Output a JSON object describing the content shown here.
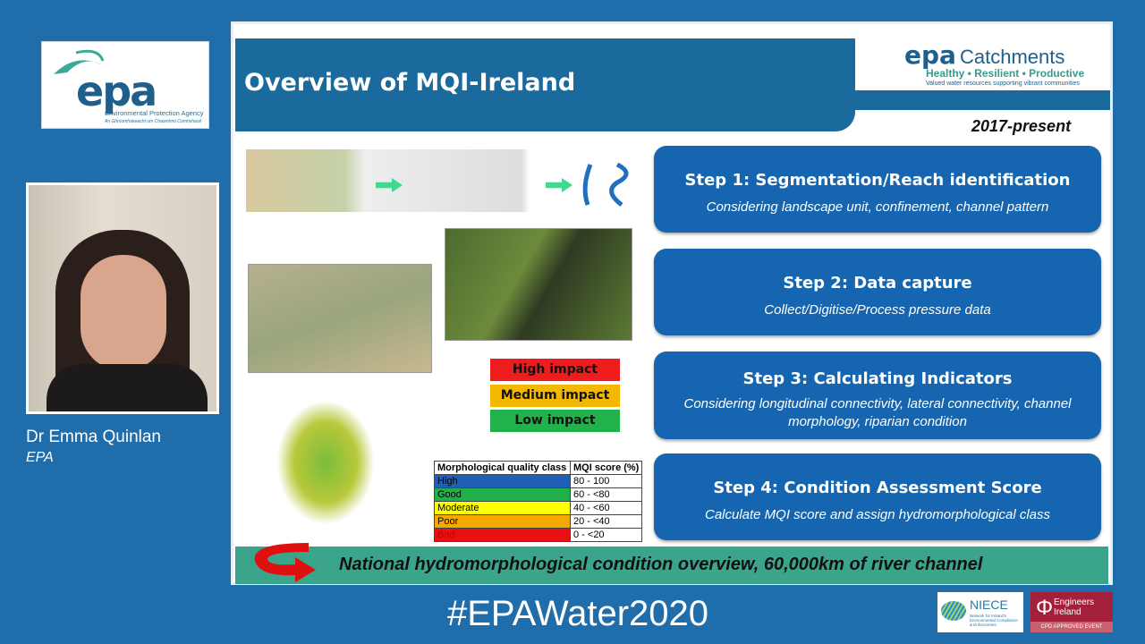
{
  "presenter": {
    "name": "Dr Emma Quinlan",
    "org": "EPA"
  },
  "epa_logo": {
    "text": "epa",
    "line1": "Environmental Protection Agency",
    "line2": "An Ghníomhaireacht um Chaomhnú Comhshaoil"
  },
  "slide": {
    "title": "Overview of MQI-Ireland",
    "logo": {
      "epa": "epa",
      "catchments": "Catchments",
      "tagline": "Healthy • Resilient • Productive",
      "subtagline": "Valued water resources supporting vibrant communities"
    },
    "period": "2017-present",
    "steps": [
      {
        "title": "Step 1: Segmentation/Reach identification",
        "desc": "Considering landscape unit, confinement, channel pattern"
      },
      {
        "title": "Step 2: Data capture",
        "desc": "Collect/Digitise/Process pressure data"
      },
      {
        "title": "Step 3: Calculating Indicators",
        "desc": "Considering longitudinal connectivity, lateral connectivity, channel morphology, riparian condition"
      },
      {
        "title": "Step 4: Condition Assessment Score",
        "desc": "Calculate MQI score and assign hydromorphological class"
      }
    ],
    "impacts": [
      {
        "label": "High impact",
        "color": "#ee1c1c"
      },
      {
        "label": "Medium impact",
        "color": "#f5b800"
      },
      {
        "label": "Low impact",
        "color": "#22b24c"
      }
    ],
    "table": {
      "headers": [
        "Morphological quality class",
        "MQI score (%)"
      ],
      "rows": [
        {
          "class": "High",
          "score": "80 - 100",
          "color": "#1f5fb8"
        },
        {
          "class": "Good",
          "score": "60 - <80",
          "color": "#1fb04a"
        },
        {
          "class": "Moderate",
          "score": "40 - <60",
          "color": "#ffff00"
        },
        {
          "class": "Poor",
          "score": "20 - <40",
          "color": "#f5a800"
        },
        {
          "class": "Bad",
          "score": "0 - <20",
          "color": "#e81010"
        }
      ]
    },
    "bottom_text": "National hydromorphological condition overview, 60,000km of river channel"
  },
  "hashtag": "#EPAWater2020",
  "sponsors": {
    "niece": {
      "name": "NIECE",
      "desc": "Network for Ireland's Environmental Compliance & Enforcement"
    },
    "ei": {
      "name": "Engineers Ireland",
      "badge": "CPD APPROVED EVENT"
    }
  }
}
